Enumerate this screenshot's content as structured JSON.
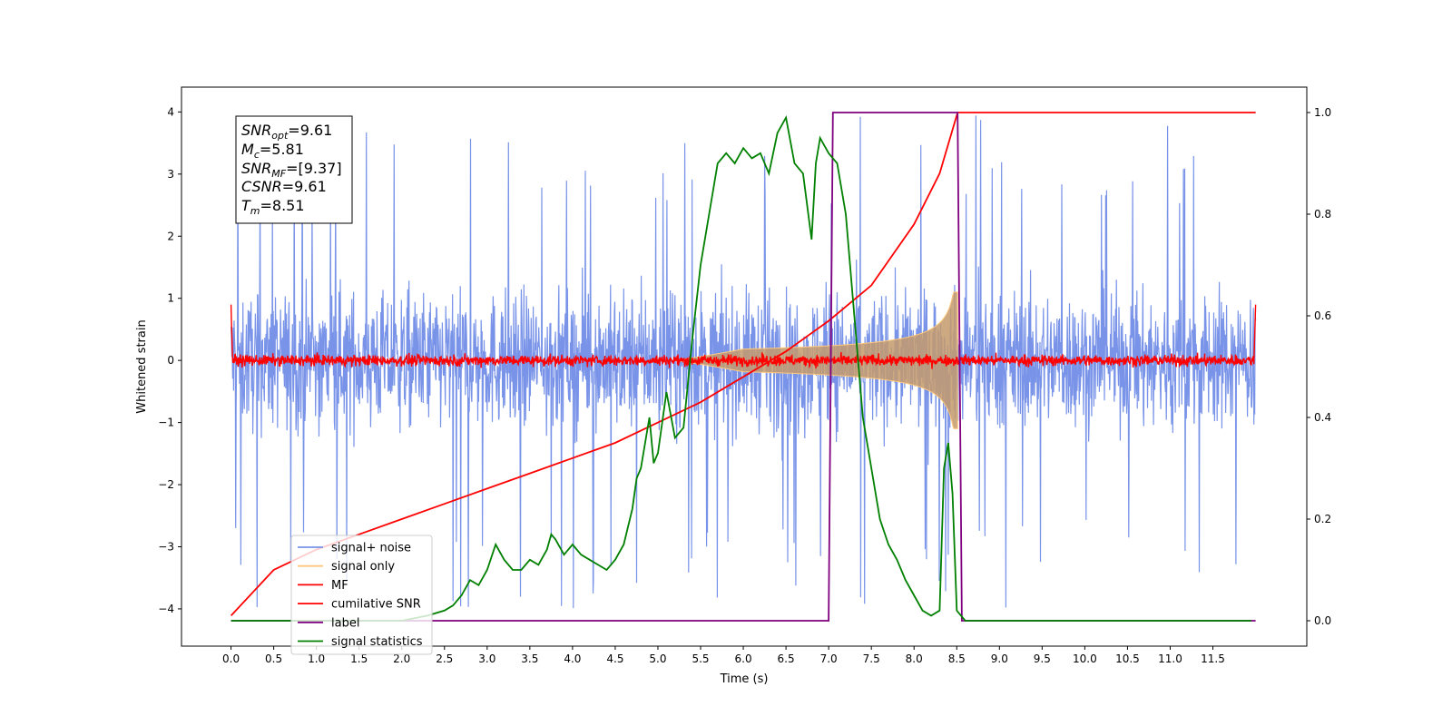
{
  "chart_data": {
    "type": "line",
    "xlabel": "Time (s)",
    "ylabel": "Whitened strain",
    "xlim": [
      -0.58,
      12.6
    ],
    "ylim": [
      -4.6,
      4.4
    ],
    "y2lim": [
      -0.05,
      1.05
    ],
    "x_ticks": [
      "0.0",
      "0.5",
      "1.0",
      "1.5",
      "2.0",
      "2.5",
      "3.0",
      "3.5",
      "4.0",
      "4.5",
      "5.0",
      "5.5",
      "6.0",
      "6.5",
      "7.0",
      "7.5",
      "8.0",
      "8.5",
      "9.0",
      "9.5",
      "10.0",
      "10.5",
      "11.0",
      "11.5"
    ],
    "y_ticks": [
      "4",
      "3",
      "2",
      "1",
      "0",
      "−1",
      "−2",
      "−3",
      "−4"
    ],
    "y2_ticks": [
      "1.0",
      "0.8",
      "0.6",
      "0.4",
      "0.2",
      "0.0"
    ],
    "annotation": {
      "line1_main": "SNR",
      "line1_sub": "opt",
      "line1_val": "=9.61",
      "line2_main": "M",
      "line2_sub": "c",
      "line2_val": "=5.81",
      "line3_main": "SNR",
      "line3_sub": "MF",
      "line3_val": "=[9.37]",
      "line4_main": "CSNR",
      "line4_val": "=9.61",
      "line5_main": "T",
      "line5_sub": "m",
      "line5_val": "=8.51"
    },
    "legend_position": "lower-left",
    "series": [
      {
        "name": "signal+ noise",
        "color": "#7893e8",
        "axis": "left",
        "kind": "noise",
        "x_range": [
          0,
          12
        ],
        "amplitude_typical": 1.2,
        "amplitude_peak": 4.0
      },
      {
        "name": "signal only",
        "color": "#ffc87d",
        "axis": "left",
        "kind": "chirp",
        "x_range": [
          5.2,
          8.51
        ],
        "amplitude_end": 1.1
      },
      {
        "name": "MF",
        "color": "#ff0000",
        "axis": "left",
        "kind": "noise",
        "x_range": [
          0,
          12
        ],
        "amplitude_typical": 0.12
      },
      {
        "name": "cumilative SNR",
        "color": "#ff0000",
        "axis": "right",
        "x": [
          0.0,
          0.5,
          1.0,
          1.5,
          2.0,
          2.5,
          3.0,
          3.5,
          4.0,
          4.5,
          5.0,
          5.5,
          6.0,
          6.5,
          7.0,
          7.5,
          8.0,
          8.3,
          8.51,
          8.52,
          12.0
        ],
        "y": [
          0.01,
          0.1,
          0.14,
          0.17,
          0.2,
          0.23,
          0.26,
          0.29,
          0.32,
          0.35,
          0.39,
          0.43,
          0.48,
          0.53,
          0.59,
          0.66,
          0.78,
          0.88,
          1.0,
          1.0,
          1.0
        ]
      },
      {
        "name": "label",
        "color": "#800080",
        "axis": "right",
        "x": [
          0.0,
          7.0,
          7.05,
          8.51,
          8.56,
          12.0
        ],
        "y": [
          0.0,
          0.0,
          1.0,
          1.0,
          0.0,
          0.0
        ]
      },
      {
        "name": "signal statistics",
        "color": "#008000",
        "axis": "right",
        "x": [
          0.0,
          0.5,
          1.0,
          1.5,
          2.0,
          2.3,
          2.5,
          2.6,
          2.7,
          2.8,
          2.9,
          3.0,
          3.1,
          3.2,
          3.3,
          3.4,
          3.5,
          3.6,
          3.7,
          3.75,
          3.8,
          3.9,
          4.0,
          4.1,
          4.2,
          4.3,
          4.4,
          4.5,
          4.6,
          4.7,
          4.75,
          4.8,
          4.9,
          4.95,
          5.0,
          5.1,
          5.2,
          5.3,
          5.4,
          5.5,
          5.6,
          5.7,
          5.8,
          5.9,
          6.0,
          6.1,
          6.2,
          6.3,
          6.4,
          6.5,
          6.6,
          6.7,
          6.8,
          6.85,
          6.9,
          7.0,
          7.1,
          7.2,
          7.3,
          7.4,
          7.5,
          7.6,
          7.7,
          7.8,
          7.9,
          8.0,
          8.1,
          8.2,
          8.3,
          8.35,
          8.4,
          8.45,
          8.5,
          8.55,
          8.6,
          9.0,
          10.0,
          11.0,
          11.95
        ],
        "y": [
          0.0,
          0.0,
          0.0,
          0.0,
          0.0,
          0.01,
          0.02,
          0.03,
          0.05,
          0.08,
          0.07,
          0.1,
          0.15,
          0.12,
          0.1,
          0.1,
          0.12,
          0.11,
          0.14,
          0.17,
          0.16,
          0.13,
          0.15,
          0.13,
          0.12,
          0.11,
          0.1,
          0.12,
          0.15,
          0.22,
          0.28,
          0.3,
          0.4,
          0.31,
          0.33,
          0.45,
          0.36,
          0.38,
          0.55,
          0.7,
          0.8,
          0.9,
          0.92,
          0.9,
          0.93,
          0.91,
          0.92,
          0.88,
          0.96,
          0.99,
          0.9,
          0.88,
          0.75,
          0.9,
          0.95,
          0.92,
          0.9,
          0.8,
          0.6,
          0.4,
          0.3,
          0.2,
          0.15,
          0.12,
          0.08,
          0.05,
          0.02,
          0.01,
          0.02,
          0.3,
          0.35,
          0.25,
          0.02,
          0.01,
          0.0,
          0.0,
          0.0,
          0.0,
          0.0
        ]
      }
    ]
  }
}
